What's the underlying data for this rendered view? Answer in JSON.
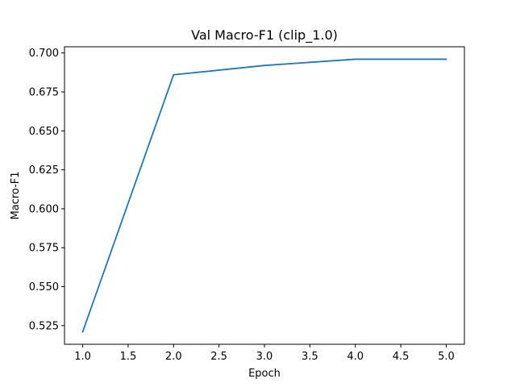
{
  "chart_data": {
    "type": "line",
    "title": "Val Macro-F1 (clip_1.0)",
    "xlabel": "Epoch",
    "ylabel": "Macro-F1",
    "x": [
      1.0,
      2.0,
      3.0,
      4.0,
      5.0
    ],
    "series": [
      {
        "values": [
          0.521,
          0.686,
          0.692,
          0.696,
          0.696
        ],
        "color": "#1f77b4"
      }
    ],
    "xlim": [
      0.8,
      5.2
    ],
    "ylim": [
      0.513,
      0.704
    ],
    "xticks": [
      1.0,
      1.5,
      2.0,
      2.5,
      3.0,
      3.5,
      4.0,
      4.5,
      5.0
    ],
    "xtick_labels": [
      "1.0",
      "1.5",
      "2.0",
      "2.5",
      "3.0",
      "3.5",
      "4.0",
      "4.5",
      "5.0"
    ],
    "yticks": [
      0.525,
      0.55,
      0.575,
      0.6,
      0.625,
      0.65,
      0.675,
      0.7
    ],
    "ytick_labels": [
      "0.525",
      "0.550",
      "0.575",
      "0.600",
      "0.625",
      "0.650",
      "0.675",
      "0.700"
    ],
    "grid": false,
    "legend": "none"
  }
}
